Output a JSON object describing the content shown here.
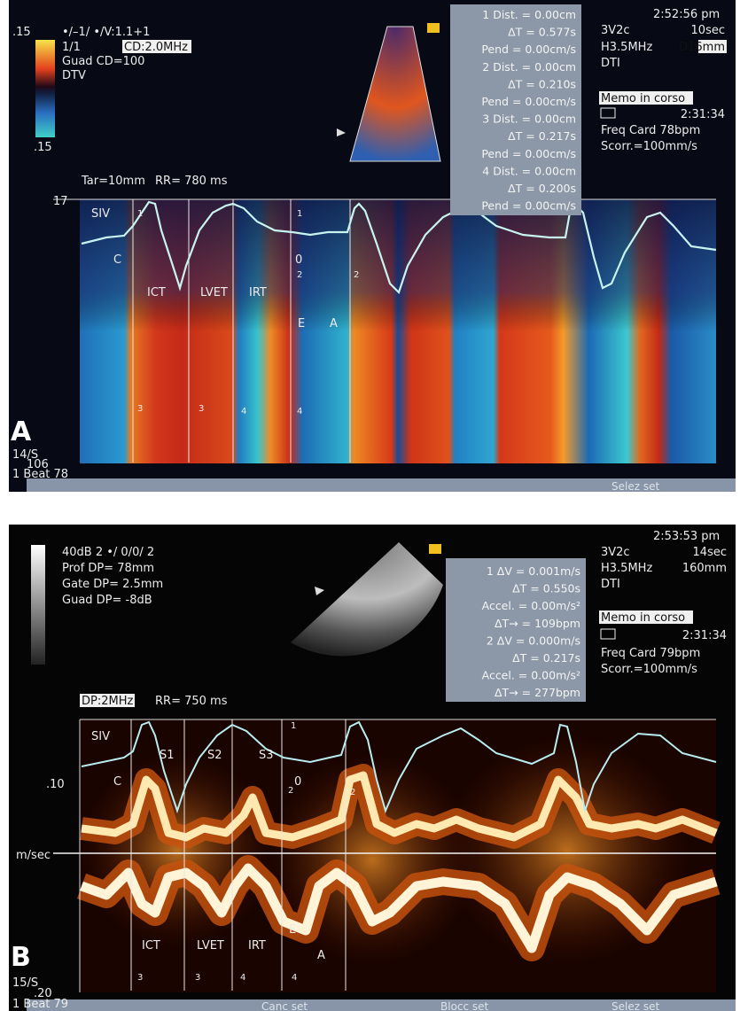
{
  "panel_a": {
    "label": "A",
    "settings": [
      ".15",
      "•/–1/  •/V:1.1+1",
      "1/1",
      "CD:2.0MHz",
      "Guad CD=100",
      "DTV",
      ".15"
    ],
    "measurements": [
      "1  Dist. = 0.00cm",
      "ΔT = 0.577s",
      "Pend = 0.00cm/s",
      "2  Dist. = 0.00cm",
      "ΔT = 0.210s",
      "Pend = 0.00cm/s",
      "3  Dist. = 0.00cm",
      "ΔT = 0.217s",
      "Pend = 0.00cm/s",
      "4  Dist. = 0.00cm",
      "ΔT = 0.200s",
      "Pend = 0.00cm/s"
    ],
    "status": {
      "time": "2:52:56 pm",
      "probe": "3V2c",
      "duration": "10sec",
      "frequency": "H3.5MHz",
      "depth": "D16mm",
      "mode": "DTI",
      "memo": "Memo in corso",
      "clock": "2:31:34",
      "heart_rate": "Freq Card  78bpm",
      "sweep": "Scorr.=100mm/s"
    },
    "scale": {
      "target": "Tar=10mm",
      "rr": "RR= 780 ms",
      "top": "17",
      "speed": "14/S",
      "bottom": "106",
      "beat": "1 Beat 78"
    },
    "trace_labels": [
      "SIV",
      "C",
      "ICT",
      "LVET",
      "IRT",
      "E",
      "A",
      "0"
    ],
    "markers": [
      "1",
      "1",
      "2",
      "2",
      "3",
      "3",
      "4",
      "4"
    ],
    "softkeys": [
      "Selez set"
    ]
  },
  "panel_b": {
    "label": "B",
    "settings": [
      "40dB  2 •/ 0/0/ 2",
      "Prof DP= 78mm",
      "Gate DP= 2.5mm",
      "Guad DP= -8dB"
    ],
    "measurements": [
      "1  ΔV = 0.001m/s",
      "ΔT = 0.550s",
      "Accel. = 0.00m/s²",
      "ΔT→ = 109bpm",
      "2  ΔV = 0.000m/s",
      "ΔT = 0.217s",
      "Accel. = 0.00m/s²",
      "ΔT→ = 277bpm"
    ],
    "status": {
      "time": "2:53:53 pm",
      "probe": "3V2c",
      "duration": "14sec",
      "frequency": "H3.5MHz",
      "depth": "160mm",
      "mode": "DTI",
      "memo": "Memo in corso",
      "clock": "2:31:34",
      "heart_rate": "Freq Card  79bpm",
      "sweep": "Scorr.=100mm/s"
    },
    "scale": {
      "probe_freq": "DP:2MHz",
      "rr": "RR= 750 ms",
      "upper": ".10",
      "unit": "m/sec",
      "speed": "15/S",
      "lower": ".20",
      "beat": "1 Beat 79"
    },
    "trace_labels": [
      "SIV",
      "C",
      "S1",
      "S2",
      "S3",
      "0",
      "ICT",
      "LVET",
      "IRT",
      "E",
      "A"
    ],
    "markers": [
      "1",
      "2",
      "2",
      "3",
      "3",
      "4",
      "4"
    ],
    "softkeys": [
      "Canc set",
      "Blocc set",
      "Selez set"
    ]
  }
}
